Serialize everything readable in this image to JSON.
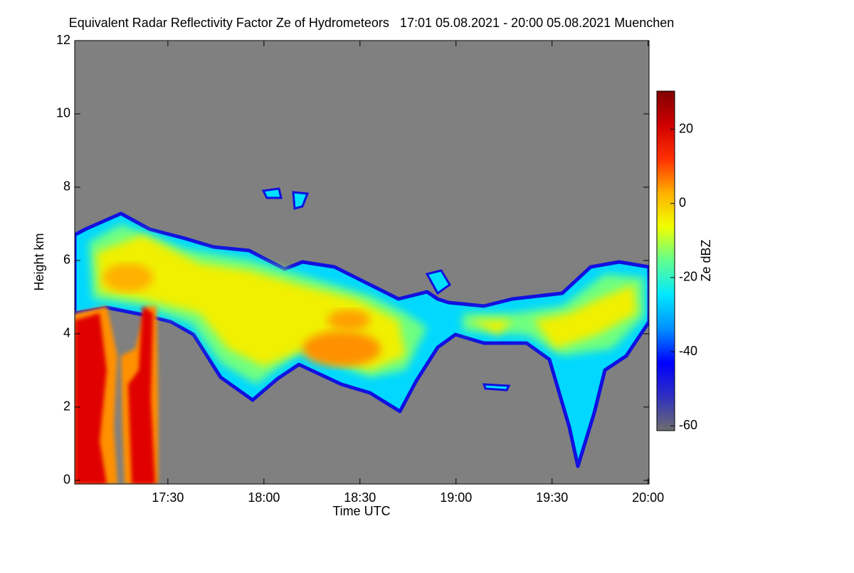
{
  "chart_data": {
    "type": "heatmap",
    "title": "Equivalent Radar Reflectivity Factor Ze of Hydrometeors   17:01 05.08.2021 - 20:00 05.08.2021 Muenchen",
    "xlabel": "Time UTC",
    "ylabel": "Height km",
    "xlim": [
      1020.9,
      1200.3
    ],
    "xticks": [
      {
        "value": 1050,
        "label": "17:30"
      },
      {
        "value": 1080,
        "label": "18:00"
      },
      {
        "value": 1110,
        "label": "18:30"
      },
      {
        "value": 1140,
        "label": "19:00"
      },
      {
        "value": 1170,
        "label": "19:30"
      },
      {
        "value": 1200,
        "label": "20:00"
      }
    ],
    "ylim": [
      -0.1,
      12
    ],
    "yticks": [
      0,
      2,
      4,
      6,
      8,
      10,
      12
    ],
    "colorbar": {
      "label": "Ze dBZ",
      "lim": [
        -61.3,
        30.3
      ],
      "ticks": [
        20,
        0,
        -20,
        -40,
        -60
      ],
      "colormap": [
        "#6e6e6e",
        "#3030c0",
        "#0000ff",
        "#0090ff",
        "#00e8ff",
        "#60ff90",
        "#f0ff00",
        "#ffb000",
        "#ff3000",
        "#d00000",
        "#800000"
      ]
    },
    "background": "#808080"
  }
}
